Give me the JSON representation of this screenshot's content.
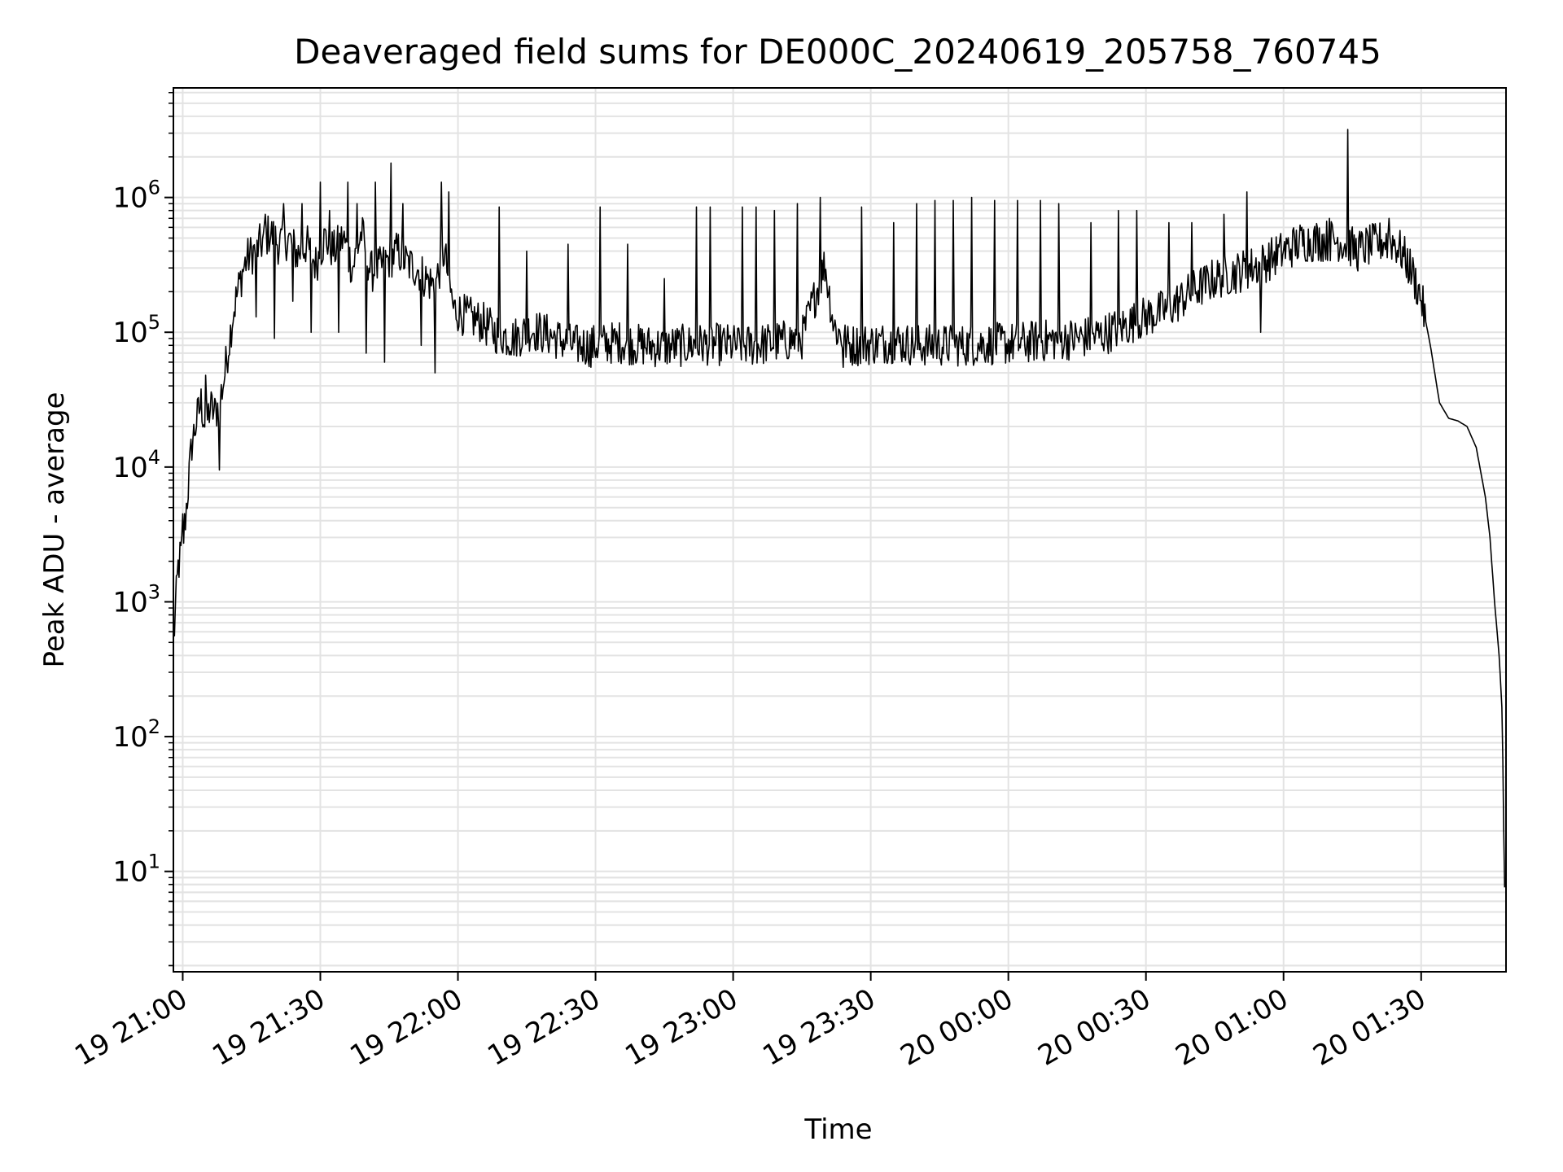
{
  "chart_data": {
    "type": "line",
    "title": "Deaveraged field sums for DE000C_20240619_205758_760745",
    "xlabel": "Time",
    "ylabel": "Peak ADU - average",
    "yscale": "log",
    "ylim": [
      1.8,
      6500000
    ],
    "xlim": [
      "2024-06-19 20:57:58",
      "2024-06-20 01:48:30"
    ],
    "grid": "on (major and minor)",
    "x_ticks": [
      "2024-06-19 21:00",
      "2024-06-19 21:30",
      "2024-06-19 22:00",
      "2024-06-19 22:30",
      "2024-06-19 23:00",
      "2024-06-19 23:30",
      "2024-06-20 00:00",
      "2024-06-20 00:30",
      "2024-06-20 01:00",
      "2024-06-20 01:30"
    ],
    "x_tick_labels": [
      "19 21:00",
      "19 21:30",
      "19 22:00",
      "19 22:30",
      "19 23:00",
      "19 23:30",
      "20 00:00",
      "20 00:30",
      "20 01:00",
      "20 01:30"
    ],
    "y_ticks": [
      10,
      100,
      1000,
      10000,
      100000,
      1000000
    ],
    "y_tick_labels": [
      {
        "base": "10",
        "exp": "1"
      },
      {
        "base": "10",
        "exp": "2"
      },
      {
        "base": "10",
        "exp": "3"
      },
      {
        "base": "10",
        "exp": "4"
      },
      {
        "base": "10",
        "exp": "5"
      },
      {
        "base": "10",
        "exp": "6"
      }
    ],
    "line_color": "#000000",
    "grid_color": "#e3e3e3",
    "series": [
      {
        "values": [
          [
            "2024-06-19 20:58:00",
            500
          ],
          [
            "2024-06-19 20:59:00",
            1800
          ],
          [
            "2024-06-19 21:00:00",
            2600
          ],
          [
            "2024-06-19 21:01:00",
            6000
          ],
          [
            "2024-06-19 21:02:00",
            15000
          ],
          [
            "2024-06-19 21:03:00",
            22000
          ],
          [
            "2024-06-19 21:04:00",
            30000
          ],
          [
            "2024-06-19 21:05:00",
            20000
          ],
          [
            "2024-06-19 21:06:00",
            28000
          ],
          [
            "2024-06-19 21:07:00",
            25000
          ],
          [
            "2024-06-19 21:08:00",
            30000
          ],
          [
            "2024-06-19 21:09:00",
            45000
          ],
          [
            "2024-06-19 21:10:00",
            80000
          ],
          [
            "2024-06-19 21:11:00",
            140000
          ],
          [
            "2024-06-19 21:12:00",
            200000
          ],
          [
            "2024-06-19 21:13:00",
            280000
          ],
          [
            "2024-06-19 21:14:00",
            350000
          ],
          [
            "2024-06-19 21:15:00",
            380000
          ],
          [
            "2024-06-19 21:17:00",
            450000
          ],
          [
            "2024-06-19 21:19:00",
            550000
          ],
          [
            "2024-06-19 21:21:00",
            450000
          ],
          [
            "2024-06-19 21:23:00",
            500000
          ],
          [
            "2024-06-19 21:25:00",
            380000
          ],
          [
            "2024-06-19 21:27:00",
            450000
          ],
          [
            "2024-06-19 21:29:00",
            320000
          ],
          [
            "2024-06-19 21:31:00",
            500000
          ],
          [
            "2024-06-19 21:33:00",
            400000
          ],
          [
            "2024-06-19 21:35:00",
            500000
          ],
          [
            "2024-06-19 21:37:00",
            300000
          ],
          [
            "2024-06-19 21:39:00",
            550000
          ],
          [
            "2024-06-19 21:41:00",
            280000
          ],
          [
            "2024-06-19 21:43:00",
            300000
          ],
          [
            "2024-06-19 21:45:00",
            350000
          ],
          [
            "2024-06-19 21:47:00",
            400000
          ],
          [
            "2024-06-19 21:49:00",
            320000
          ],
          [
            "2024-06-19 21:51:00",
            300000
          ],
          [
            "2024-06-19 21:53:00",
            250000
          ],
          [
            "2024-06-19 21:55:00",
            220000
          ],
          [
            "2024-06-19 21:57:00",
            400000
          ],
          [
            "2024-06-19 21:59:00",
            150000
          ],
          [
            "2024-06-19 22:02:00",
            130000
          ],
          [
            "2024-06-19 22:05:00",
            120000
          ],
          [
            "2024-06-19 22:08:00",
            100000
          ],
          [
            "2024-06-19 22:12:00",
            90000
          ],
          [
            "2024-06-19 22:16:00",
            105000
          ],
          [
            "2024-06-19 22:20:00",
            95000
          ],
          [
            "2024-06-19 22:25:00",
            80000
          ],
          [
            "2024-06-19 22:30:00",
            80000
          ],
          [
            "2024-06-19 22:35:00",
            85000
          ],
          [
            "2024-06-19 22:40:00",
            80000
          ],
          [
            "2024-06-19 22:45:00",
            78000
          ],
          [
            "2024-06-19 22:50:00",
            80000
          ],
          [
            "2024-06-19 22:55:00",
            82000
          ],
          [
            "2024-06-19 23:00:00",
            80000
          ],
          [
            "2024-06-19 23:05:00",
            80000
          ],
          [
            "2024-06-19 23:10:00",
            85000
          ],
          [
            "2024-06-19 23:15:00",
            90000
          ],
          [
            "2024-06-19 23:20:00",
            320000
          ],
          [
            "2024-06-19 23:22:00",
            110000
          ],
          [
            "2024-06-19 23:25:00",
            80000
          ],
          [
            "2024-06-19 23:30:00",
            82000
          ],
          [
            "2024-06-19 23:35:00",
            85000
          ],
          [
            "2024-06-19 23:40:00",
            80000
          ],
          [
            "2024-06-19 23:45:00",
            80000
          ],
          [
            "2024-06-19 23:50:00",
            80000
          ],
          [
            "2024-06-19 23:55:00",
            82000
          ],
          [
            "2024-06-20 00:00:00",
            82000
          ],
          [
            "2024-06-20 00:05:00",
            85000
          ],
          [
            "2024-06-20 00:10:00",
            88000
          ],
          [
            "2024-06-20 00:15:00",
            90000
          ],
          [
            "2024-06-20 00:20:00",
            95000
          ],
          [
            "2024-06-20 00:25:00",
            110000
          ],
          [
            "2024-06-20 00:30:00",
            130000
          ],
          [
            "2024-06-20 00:35:00",
            150000
          ],
          [
            "2024-06-20 00:40:00",
            200000
          ],
          [
            "2024-06-20 00:45:00",
            250000
          ],
          [
            "2024-06-20 00:50:00",
            280000
          ],
          [
            "2024-06-20 00:55:00",
            320000
          ],
          [
            "2024-06-20 01:00:00",
            400000
          ],
          [
            "2024-06-20 01:04:00",
            470000
          ],
          [
            "2024-06-20 01:08:00",
            480000
          ],
          [
            "2024-06-20 01:12:00",
            480000
          ],
          [
            "2024-06-20 01:14:00",
            450000
          ],
          [
            "2024-06-20 01:16:00",
            400000
          ],
          [
            "2024-06-20 01:18:00",
            430000
          ],
          [
            "2024-06-20 01:20:00",
            450000
          ],
          [
            "2024-06-20 01:22:00",
            480000
          ],
          [
            "2024-06-20 01:24:00",
            470000
          ],
          [
            "2024-06-20 01:26:00",
            380000
          ],
          [
            "2024-06-20 01:28:00",
            280000
          ],
          [
            "2024-06-20 01:30:00",
            180000
          ],
          [
            "2024-06-20 01:32:00",
            80000
          ],
          [
            "2024-06-20 01:34:00",
            30000
          ],
          [
            "2024-06-20 01:36:00",
            23000
          ],
          [
            "2024-06-20 01:38:00",
            22000
          ],
          [
            "2024-06-20 01:40:00",
            20000
          ],
          [
            "2024-06-20 01:42:00",
            14000
          ],
          [
            "2024-06-20 01:44:00",
            6000
          ],
          [
            "2024-06-20 01:45:00",
            3000
          ],
          [
            "2024-06-20 01:46:00",
            1000
          ],
          [
            "2024-06-20 01:47:00",
            400
          ],
          [
            "2024-06-20 01:47:40",
            150
          ],
          [
            "2024-06-20 01:48:00",
            20
          ],
          [
            "2024-06-20 01:48:20",
            4
          ]
        ]
      }
    ],
    "spikes": [
      [
        "2024-06-19 21:00:00",
        4500
      ],
      [
        "2024-06-19 21:05:00",
        48000
      ],
      [
        "2024-06-19 21:08:00",
        9500
      ],
      [
        "2024-06-19 21:16:00",
        130000
      ],
      [
        "2024-06-19 21:18:00",
        750000
      ],
      [
        "2024-06-19 21:20:00",
        90000
      ],
      [
        "2024-06-19 21:22:00",
        900000
      ],
      [
        "2024-06-19 21:24:00",
        170000
      ],
      [
        "2024-06-19 21:26:00",
        900000
      ],
      [
        "2024-06-19 21:28:00",
        100000
      ],
      [
        "2024-06-19 21:30:00",
        1300000
      ],
      [
        "2024-06-19 21:32:00",
        800000
      ],
      [
        "2024-06-19 21:34:00",
        100000
      ],
      [
        "2024-06-19 21:36:00",
        1300000
      ],
      [
        "2024-06-19 21:38:00",
        900000
      ],
      [
        "2024-06-19 21:40:00",
        70000
      ],
      [
        "2024-06-19 21:42:00",
        1300000
      ],
      [
        "2024-06-19 21:44:00",
        60000
      ],
      [
        "2024-06-19 21:45:30",
        1800000
      ],
      [
        "2024-06-19 21:48:00",
        900000
      ],
      [
        "2024-06-19 21:52:00",
        80000
      ],
      [
        "2024-06-19 21:55:00",
        50000
      ],
      [
        "2024-06-19 21:56:30",
        1300000
      ],
      [
        "2024-06-19 21:58:00",
        1100000
      ],
      [
        "2024-06-19 22:09:00",
        850000
      ],
      [
        "2024-06-19 22:15:00",
        400000
      ],
      [
        "2024-06-19 22:24:00",
        450000
      ],
      [
        "2024-06-19 22:29:00",
        55000
      ],
      [
        "2024-06-19 22:31:00",
        850000
      ],
      [
        "2024-06-19 22:37:00",
        450000
      ],
      [
        "2024-06-19 22:45:00",
        250000
      ],
      [
        "2024-06-19 22:52:00",
        850000
      ],
      [
        "2024-06-19 22:55:00",
        850000
      ],
      [
        "2024-06-19 23:02:00",
        850000
      ],
      [
        "2024-06-19 23:05:00",
        850000
      ],
      [
        "2024-06-19 23:09:00",
        800000
      ],
      [
        "2024-06-19 23:14:00",
        900000
      ],
      [
        "2024-06-19 23:19:00",
        1000000
      ],
      [
        "2024-06-19 23:24:00",
        55000
      ],
      [
        "2024-06-19 23:28:00",
        850000
      ],
      [
        "2024-06-19 23:35:00",
        650000
      ],
      [
        "2024-06-19 23:40:00",
        900000
      ],
      [
        "2024-06-19 23:44:00",
        950000
      ],
      [
        "2024-06-19 23:48:00",
        950000
      ],
      [
        "2024-06-19 23:52:00",
        1000000
      ],
      [
        "2024-06-19 23:57:00",
        950000
      ],
      [
        "2024-06-20 00:02:00",
        950000
      ],
      [
        "2024-06-20 00:07:00",
        950000
      ],
      [
        "2024-06-20 00:11:00",
        900000
      ],
      [
        "2024-06-20 00:18:00",
        650000
      ],
      [
        "2024-06-20 00:24:00",
        800000
      ],
      [
        "2024-06-20 00:28:00",
        800000
      ],
      [
        "2024-06-20 00:35:00",
        650000
      ],
      [
        "2024-06-20 00:40:00",
        650000
      ],
      [
        "2024-06-20 00:47:00",
        750000
      ],
      [
        "2024-06-20 00:52:00",
        1100000
      ],
      [
        "2024-06-20 00:55:00",
        100000
      ],
      [
        "2024-06-20 01:10:00",
        700000
      ],
      [
        "2024-06-20 01:14:00",
        3200000
      ],
      [
        "2024-06-20 01:23:00",
        700000
      ]
    ]
  }
}
